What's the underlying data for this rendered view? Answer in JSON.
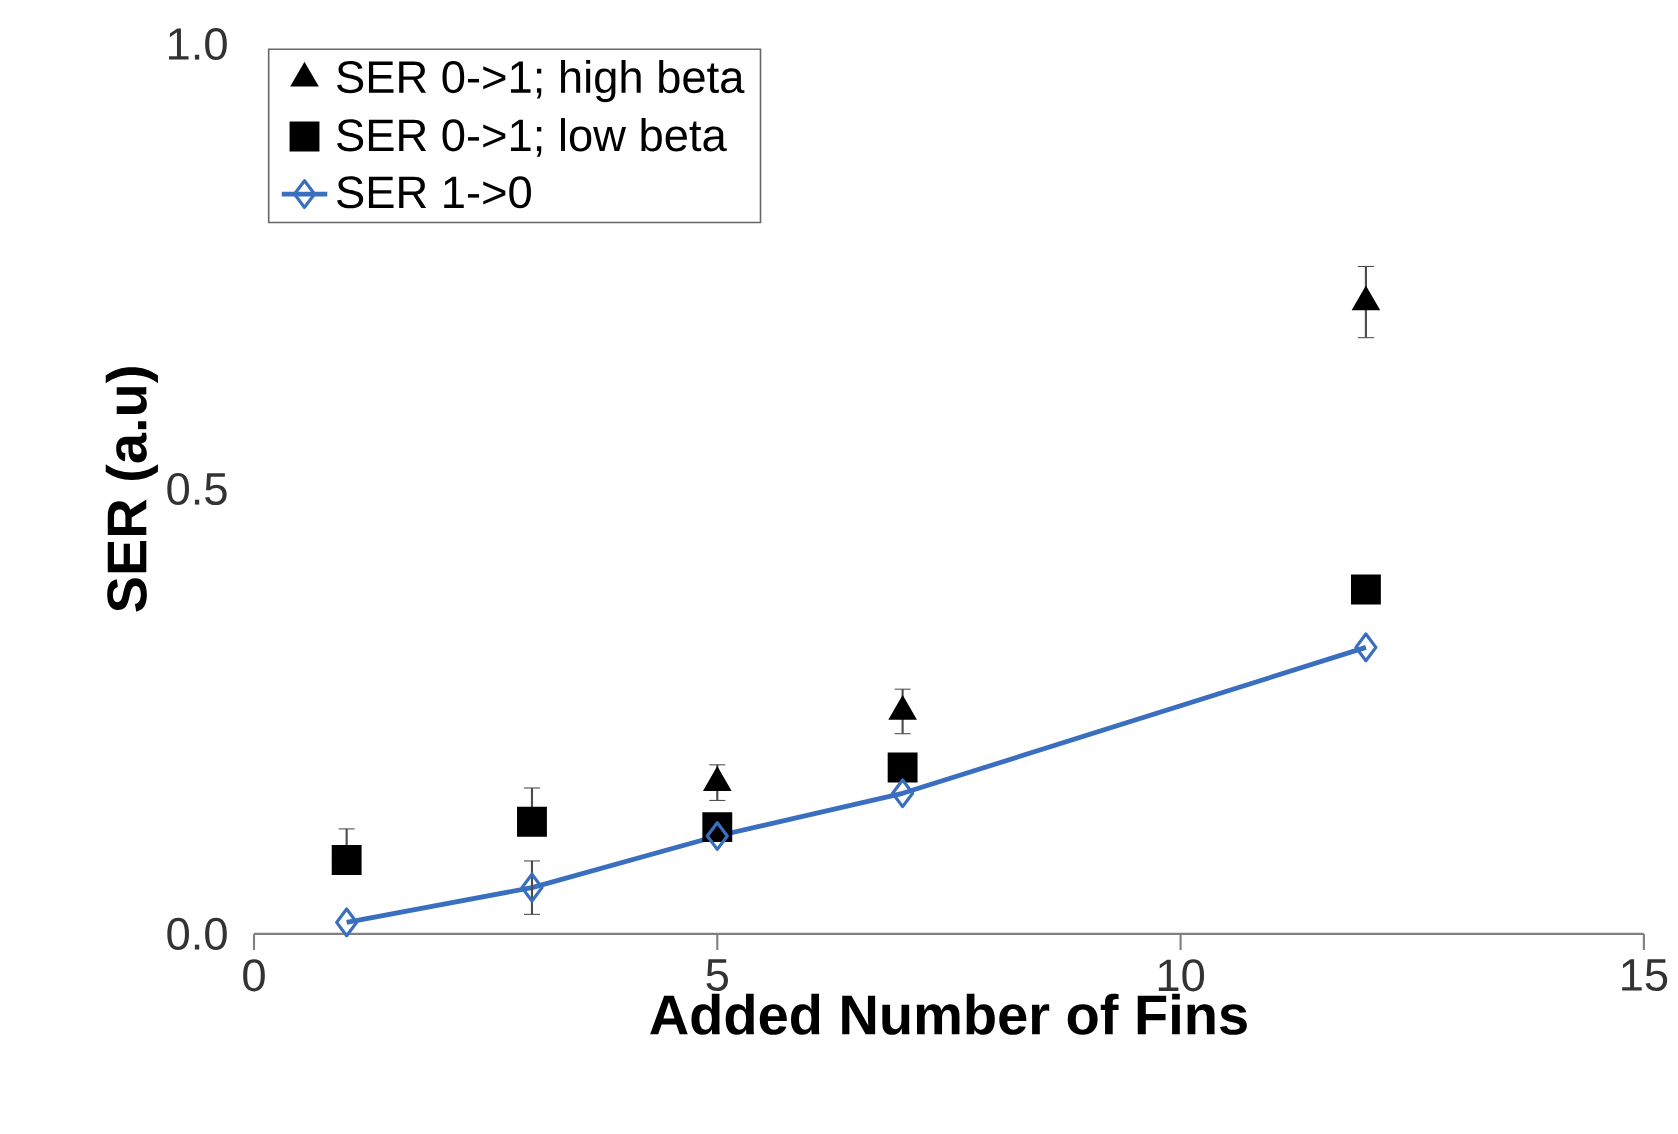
{
  "chart_data": {
    "type": "scatter",
    "xlabel": "Added Number of Fins",
    "ylabel": "SER (a.u)",
    "x": [
      1,
      3,
      5,
      7,
      12
    ],
    "series": [
      {
        "name": "SER 0->1; high beta",
        "marker": "triangle",
        "color": "#000000",
        "values": [
          null,
          null,
          0.17,
          0.25,
          0.71
        ],
        "errors": [
          null,
          null,
          0.02,
          0.025,
          0.04
        ]
      },
      {
        "name": "SER 0->1; low beta",
        "marker": "square",
        "color": "#000000",
        "values": [
          0.083,
          0.126,
          0.12,
          0.187,
          0.387
        ],
        "errors": [
          [
            0.083,
            0.118
          ],
          [
            0.126,
            0.164
          ],
          null,
          null,
          null
        ]
      },
      {
        "name": "SER 1->0",
        "type": "line",
        "marker": "diamond",
        "color": "#3a6fc0",
        "values": [
          0.013,
          0.052,
          0.11,
          0.158,
          0.322
        ],
        "errors": [
          null,
          0.03,
          null,
          null,
          null
        ]
      }
    ],
    "xlim": [
      0,
      15
    ],
    "xticks": [
      0,
      5,
      10,
      15
    ],
    "ylim": [
      0,
      1
    ],
    "yticks": [
      {
        "value": 0,
        "label": "0.0"
      },
      {
        "value": 0.5,
        "label": "0.5"
      },
      {
        "value": 1,
        "label": "1.0"
      }
    ],
    "legend": "top left"
  }
}
